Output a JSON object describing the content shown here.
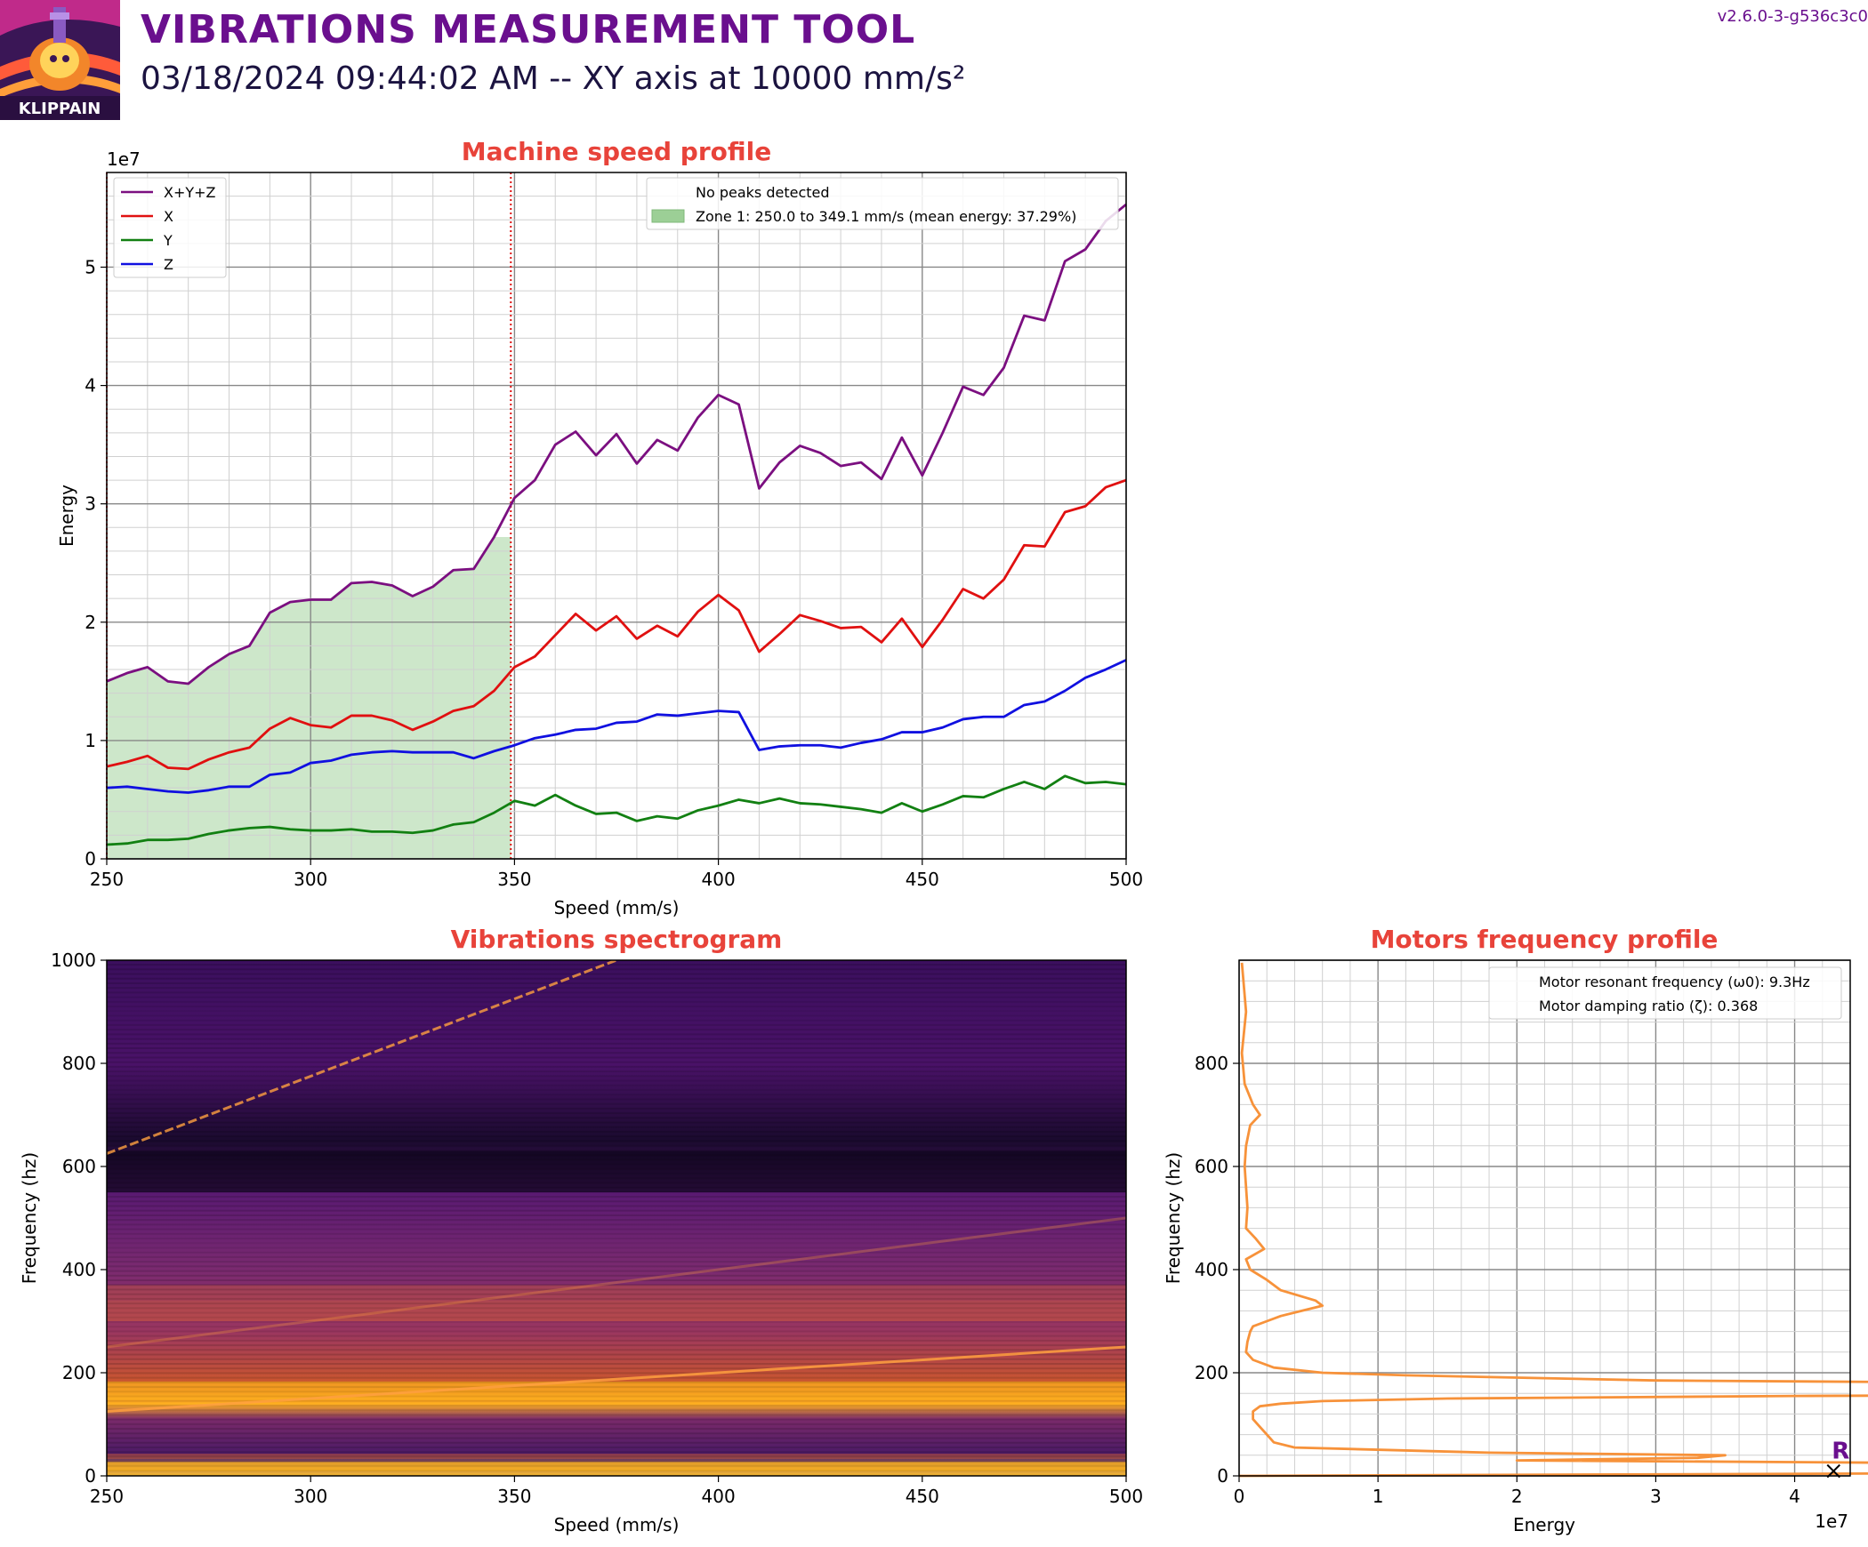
{
  "header": {
    "title": "VIBRATIONS MEASUREMENT TOOL",
    "subtitle": "03/18/2024 09:44:02 AM -- XY axis at 10000 mm/s²",
    "version": "v2.6.0-3-g536c3c0",
    "logo_text": "KLIPPAIN"
  },
  "colors": {
    "title": "#6a0f8e",
    "panel_title": "#e8433a",
    "xyz": "#7b0f80",
    "x": "#e01010",
    "y": "#128012",
    "z": "#1010e0",
    "zone_fill": "#9ccf96",
    "motor": "#f7923a"
  },
  "chart_data": [
    {
      "type": "line",
      "title": "Machine speed profile",
      "xlabel": "Speed (mm/s)",
      "ylabel": "Energy",
      "y_offset_label": "1e7",
      "xlim": [
        250,
        500
      ],
      "ylim": [
        0,
        5.8
      ],
      "x_ticks": [
        250,
        300,
        350,
        400,
        450,
        500
      ],
      "y_ticks": [
        0,
        1,
        2,
        3,
        4,
        5
      ],
      "grid": true,
      "x": [
        250,
        255,
        260,
        265,
        270,
        275,
        280,
        285,
        290,
        295,
        300,
        305,
        310,
        315,
        320,
        325,
        330,
        335,
        340,
        345,
        350,
        355,
        360,
        365,
        370,
        375,
        380,
        385,
        390,
        395,
        400,
        405,
        410,
        415,
        420,
        425,
        430,
        435,
        440,
        445,
        450,
        455,
        460,
        465,
        470,
        475,
        480,
        485,
        490,
        495,
        500
      ],
      "series": [
        {
          "name": "X+Y+Z",
          "color": "#7b0f80",
          "values": [
            1.5,
            1.57,
            1.62,
            1.5,
            1.48,
            1.62,
            1.73,
            1.8,
            2.08,
            2.17,
            2.19,
            2.19,
            2.33,
            2.34,
            2.31,
            2.22,
            2.3,
            2.44,
            2.45,
            2.72,
            3.05,
            3.2,
            3.5,
            3.61,
            3.41,
            3.59,
            3.34,
            3.54,
            3.45,
            3.73,
            3.92,
            3.84,
            3.13,
            3.35,
            3.49,
            3.43,
            3.32,
            3.35,
            3.21,
            3.56,
            3.24,
            3.6,
            3.99,
            3.92,
            4.15,
            4.59,
            4.55,
            5.05,
            5.15,
            5.39,
            5.53
          ]
        },
        {
          "name": "X",
          "color": "#e01010",
          "values": [
            0.78,
            0.82,
            0.87,
            0.77,
            0.76,
            0.84,
            0.9,
            0.94,
            1.1,
            1.19,
            1.13,
            1.11,
            1.21,
            1.21,
            1.17,
            1.09,
            1.16,
            1.25,
            1.29,
            1.42,
            1.62,
            1.71,
            1.89,
            2.07,
            1.93,
            2.05,
            1.86,
            1.97,
            1.88,
            2.09,
            2.23,
            2.1,
            1.75,
            1.9,
            2.06,
            2.01,
            1.95,
            1.96,
            1.83,
            2.03,
            1.79,
            2.02,
            2.28,
            2.2,
            2.36,
            2.65,
            2.64,
            2.93,
            2.98,
            3.14,
            3.2
          ]
        },
        {
          "name": "Y",
          "color": "#128012",
          "values": [
            0.12,
            0.13,
            0.16,
            0.16,
            0.17,
            0.21,
            0.24,
            0.26,
            0.27,
            0.25,
            0.24,
            0.24,
            0.25,
            0.23,
            0.23,
            0.22,
            0.24,
            0.29,
            0.31,
            0.39,
            0.49,
            0.45,
            0.54,
            0.45,
            0.38,
            0.39,
            0.32,
            0.36,
            0.34,
            0.41,
            0.45,
            0.5,
            0.47,
            0.51,
            0.47,
            0.46,
            0.44,
            0.42,
            0.39,
            0.47,
            0.4,
            0.46,
            0.53,
            0.52,
            0.59,
            0.65,
            0.59,
            0.7,
            0.64,
            0.65,
            0.63
          ]
        },
        {
          "name": "Z",
          "color": "#1010e0",
          "values": [
            0.6,
            0.61,
            0.59,
            0.57,
            0.56,
            0.58,
            0.61,
            0.61,
            0.71,
            0.73,
            0.81,
            0.83,
            0.88,
            0.9,
            0.91,
            0.9,
            0.9,
            0.9,
            0.85,
            0.91,
            0.96,
            1.02,
            1.05,
            1.09,
            1.1,
            1.15,
            1.16,
            1.22,
            1.21,
            1.23,
            1.25,
            1.24,
            0.92,
            0.95,
            0.96,
            0.96,
            0.94,
            0.98,
            1.01,
            1.07,
            1.07,
            1.11,
            1.18,
            1.2,
            1.2,
            1.3,
            1.33,
            1.42,
            1.53,
            1.6,
            1.68
          ]
        }
      ],
      "zone": {
        "label": "Zone 1: 250.0 to 349.1 mm/s (mean energy: 37.29%)",
        "from": 250.0,
        "to": 349.1
      },
      "vlines": [
        250,
        349.1
      ],
      "legend_left": {
        "placement": "top-left",
        "entries": [
          "X+Y+Z",
          "X",
          "Y",
          "Z"
        ]
      },
      "legend_right": {
        "placement": "top-right",
        "note": "No peaks detected",
        "zone_entry": "Zone 1: 250.0 to 349.1 mm/s (mean energy: 37.29%)"
      }
    },
    {
      "type": "heatmap",
      "title": "Vibrations spectrogram",
      "xlabel": "Speed (mm/s)",
      "ylabel": "Frequency (hz)",
      "xlim": [
        250,
        500
      ],
      "ylim": [
        0,
        1000
      ],
      "x_ticks": [
        250,
        300,
        350,
        400,
        450,
        500
      ],
      "y_ticks": [
        0,
        200,
        400,
        600,
        800,
        1000
      ],
      "colormap": "inferno",
      "bands": [
        {
          "f": 18,
          "intensity": 1.0,
          "width": 9
        },
        {
          "f": 38,
          "intensity": 0.55,
          "width": 5
        },
        {
          "f": 165,
          "intensity": 0.95,
          "width": 18
        },
        {
          "f": 320,
          "intensity": 0.5,
          "width": 20
        },
        {
          "f": 355,
          "intensity": 0.4,
          "width": 15
        },
        {
          "f": 590,
          "intensity": -0.9,
          "width": 40
        }
      ],
      "lines": [
        {
          "from": [
            250,
            125
          ],
          "to": [
            500,
            250
          ],
          "intensity": 0.85
        },
        {
          "from": [
            250,
            625
          ],
          "to": [
            375,
            1000
          ],
          "intensity": 0.8
        },
        {
          "from": [
            250,
            250
          ],
          "to": [
            500,
            500
          ],
          "intensity": 0.3
        }
      ]
    },
    {
      "type": "line",
      "title": "Motors frequency profile",
      "xlabel": "Energy",
      "ylabel": "Frequency (hz)",
      "x_offset_label": "1e7",
      "xlim": [
        0,
        4.4
      ],
      "ylim": [
        0,
        1000
      ],
      "x_ticks": [
        0,
        1,
        2,
        3,
        4
      ],
      "y_ticks": [
        0,
        200,
        400,
        600,
        800
      ],
      "grid": true,
      "series": [
        {
          "name": "Motor",
          "color": "#f7923a",
          "freq": [
            995,
            900,
            820,
            760,
            720,
            700,
            680,
            640,
            600,
            560,
            520,
            480,
            460,
            440,
            420,
            400,
            380,
            360,
            340,
            330,
            320,
            310,
            300,
            290,
            280,
            260,
            240,
            225,
            210,
            200,
            195,
            185,
            178,
            172,
            168,
            165,
            160,
            155,
            150,
            145,
            140,
            135,
            125,
            110,
            95,
            80,
            65,
            55,
            45,
            40,
            35,
            30,
            25,
            22,
            20,
            17,
            15,
            12,
            10,
            5,
            0
          ],
          "energy": [
            0.02,
            0.05,
            0.02,
            0.04,
            0.1,
            0.15,
            0.08,
            0.05,
            0.04,
            0.05,
            0.06,
            0.05,
            0.12,
            0.18,
            0.05,
            0.08,
            0.2,
            0.3,
            0.55,
            0.6,
            0.45,
            0.3,
            0.2,
            0.1,
            0.08,
            0.06,
            0.05,
            0.1,
            0.25,
            0.6,
            1.2,
            3.0,
            7.0,
            13.0,
            18.0,
            15.0,
            9.0,
            4.0,
            1.5,
            0.6,
            0.3,
            0.15,
            0.1,
            0.1,
            0.15,
            0.2,
            0.25,
            0.4,
            1.8,
            3.5,
            3.3,
            2.0,
            5.0,
            10.0,
            22.0,
            38.0,
            42.5,
            41.0,
            30.0,
            5.0,
            0.0
          ]
        }
      ],
      "marker": {
        "label": "R",
        "energy": 4.28,
        "freq": 9.3
      },
      "legend": {
        "placement": "top-right",
        "entries": [
          "Motor resonant frequency (ω0): 9.3Hz",
          "Motor damping ratio (ζ): 0.368"
        ]
      }
    }
  ]
}
